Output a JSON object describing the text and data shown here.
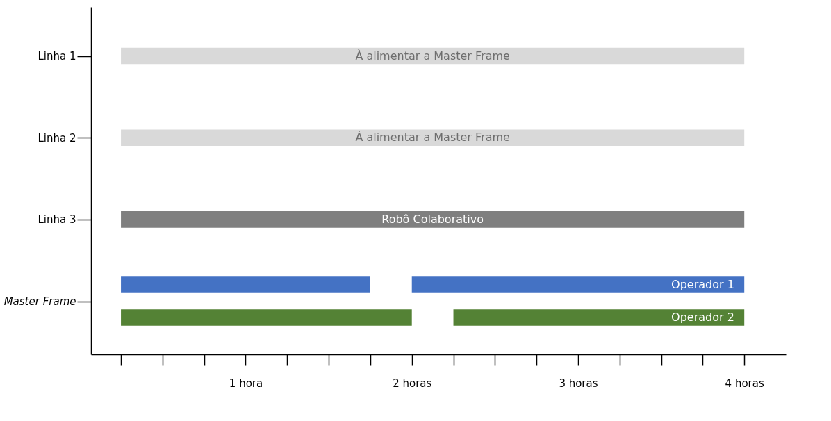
{
  "chart_data": {
    "type": "bar",
    "orientation": "horizontal",
    "categories": [
      "Linha 1",
      "Linha 2",
      "Linha 3",
      "Master Frame"
    ],
    "xlim": [
      0.07,
      4.25
    ],
    "xticks": [
      {
        "value": 0.25,
        "label": null
      },
      {
        "value": 0.5,
        "label": null
      },
      {
        "value": 0.75,
        "label": null
      },
      {
        "value": 1,
        "label": "1 hora"
      },
      {
        "value": 1.25,
        "label": null
      },
      {
        "value": 1.5,
        "label": null
      },
      {
        "value": 1.75,
        "label": null
      },
      {
        "value": 2,
        "label": "2  horas"
      },
      {
        "value": 2.25,
        "label": null
      },
      {
        "value": 2.5,
        "label": null
      },
      {
        "value": 2.75,
        "label": null
      },
      {
        "value": 3,
        "label": "3  horas"
      },
      {
        "value": 3.25,
        "label": null
      },
      {
        "value": 3.5,
        "label": null
      },
      {
        "value": 3.75,
        "label": null
      },
      {
        "value": 4,
        "label": "4  horas"
      }
    ],
    "grid": false,
    "series": [
      {
        "name": "À alimentar a Master Frame",
        "color": "#d9d9d9",
        "values": [
          3.75,
          3.75,
          null,
          null
        ],
        "base": [
          0.25,
          0.25,
          null,
          null
        ]
      },
      {
        "name": "Robô Colaborativo",
        "color": "#7f7f7f",
        "values": [
          null,
          null,
          3.75,
          null
        ],
        "base": [
          null,
          null,
          0.25,
          null
        ]
      },
      {
        "color": "#4472c4",
        "values": [
          null,
          null,
          null,
          1.5
        ],
        "base": [
          null,
          null,
          null,
          0.25
        ]
      },
      {
        "name": "Operador 1",
        "color": "#4472c4",
        "values": [
          null,
          null,
          null,
          2
        ],
        "base": [
          null,
          null,
          null,
          2
        ]
      },
      {
        "color": "#548235",
        "values": [
          null,
          null,
          null,
          1.75
        ],
        "base": [
          null,
          null,
          null,
          0.25
        ]
      },
      {
        "name": "Operador 2",
        "color": "#548235",
        "values": [
          null,
          null,
          null,
          1.75
        ],
        "base": [
          null,
          null,
          null,
          2.25
        ]
      }
    ]
  }
}
